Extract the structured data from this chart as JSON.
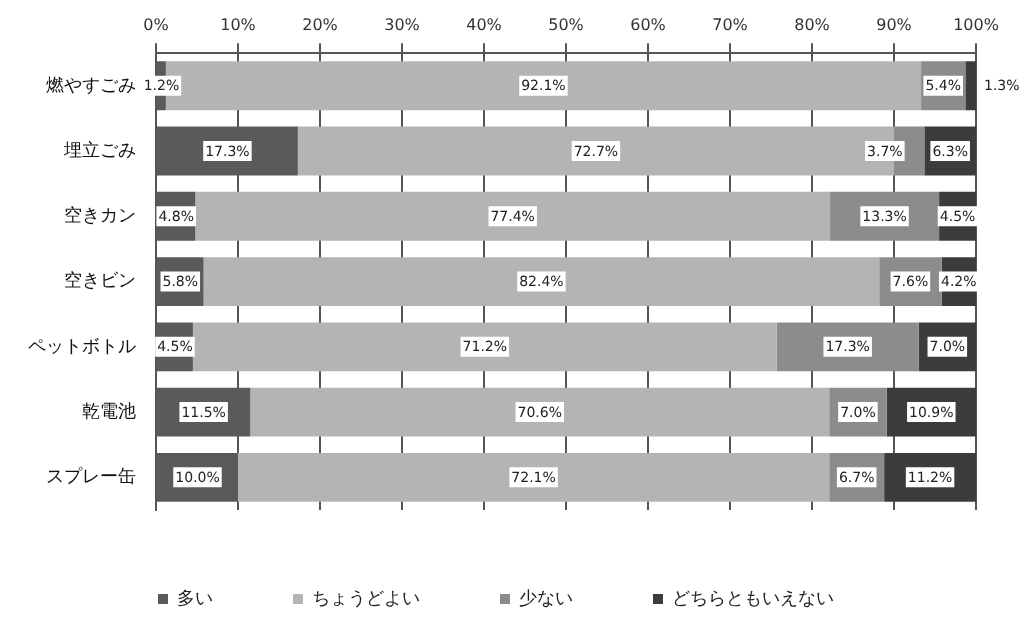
{
  "chart_data": {
    "type": "bar",
    "orientation": "horizontal",
    "stacked": true,
    "categories": [
      "燃やすごみ",
      "埋立ごみ",
      "空きカン",
      "空きビン",
      "ペットボトル",
      "乾電池",
      "スプレー缶"
    ],
    "series": [
      {
        "name": "多い",
        "color": "#5a5a5a",
        "values": [
          1.2,
          17.3,
          4.8,
          5.8,
          4.5,
          11.5,
          10.0
        ],
        "value_labels": [
          "1.2%",
          "17.3%",
          "4.8%",
          "5.8%",
          "4.5%",
          "11.5%",
          "10.0%"
        ]
      },
      {
        "name": "ちょうどよい",
        "color": "#b4b4b4",
        "values": [
          92.1,
          72.7,
          77.4,
          82.4,
          71.2,
          70.6,
          72.1
        ],
        "value_labels": [
          "92.1%",
          "72.7%",
          "77.4%",
          "82.4%",
          "71.2%",
          "70.6%",
          "72.1%"
        ]
      },
      {
        "name": "少ない",
        "color": "#8c8c8c",
        "values": [
          5.4,
          3.7,
          13.3,
          7.6,
          17.3,
          7.0,
          6.7
        ],
        "value_labels": [
          "5.4%",
          "3.7%",
          "13.3%",
          "7.6%",
          "17.3%",
          "7.0%",
          "6.7%"
        ]
      },
      {
        "name": "どちらともいえない",
        "color": "#3c3c3c",
        "values": [
          1.3,
          6.3,
          4.5,
          4.2,
          7.0,
          10.9,
          11.2
        ],
        "value_labels": [
          "1.3%",
          "6.3%",
          "4.5%",
          "4.2%",
          "7.0%",
          "10.9%",
          "11.2%"
        ]
      }
    ],
    "xlim": [
      0,
      100
    ],
    "xticks": [
      {
        "value": 0,
        "label": "0%"
      },
      {
        "value": 10,
        "label": "10%"
      },
      {
        "value": 20,
        "label": "20%"
      },
      {
        "value": 30,
        "label": "30%"
      },
      {
        "value": 40,
        "label": "40%"
      },
      {
        "value": 50,
        "label": "50%"
      },
      {
        "value": 60,
        "label": "60%"
      },
      {
        "value": 70,
        "label": "70%"
      },
      {
        "value": 80,
        "label": "80%"
      },
      {
        "value": 90,
        "label": "90%"
      },
      {
        "value": 100,
        "label": "100%"
      }
    ],
    "grid": "x",
    "legend": "bottom"
  }
}
